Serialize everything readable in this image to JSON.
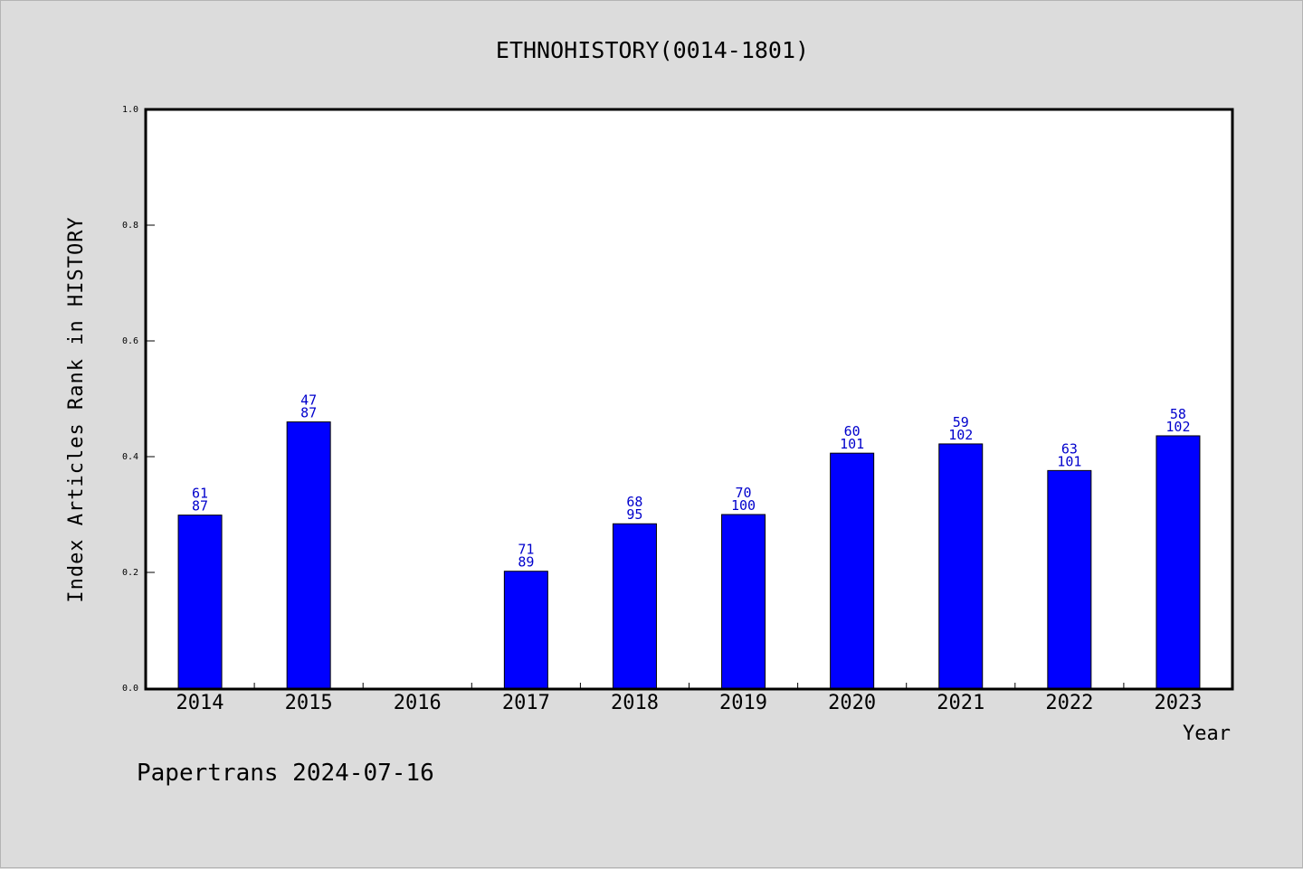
{
  "chart_data": {
    "type": "bar",
    "title": "ETHNOHISTORY(0014-1801)",
    "xlabel": "Year",
    "ylabel": "Index Articles Rank in HISTORY",
    "ylim": [
      0,
      1.0
    ],
    "yticks": [
      "0.0",
      "0.2",
      "0.4",
      "0.6",
      "0.8",
      "1.0"
    ],
    "categories": [
      "2014",
      "2015",
      "2016",
      "2017",
      "2018",
      "2019",
      "2020",
      "2021",
      "2022",
      "2023"
    ],
    "values": [
      0.299,
      0.46,
      null,
      0.202,
      0.284,
      0.3,
      0.406,
      0.422,
      0.376,
      0.436
    ],
    "labels_top": [
      "61",
      "47",
      "",
      "71",
      "68",
      "70",
      "60",
      "59",
      "63",
      "58"
    ],
    "labels_bottom": [
      "87",
      "87",
      "",
      "89",
      "95",
      "100",
      "101",
      "102",
      "101",
      "102"
    ],
    "bar_color": "#0000ff",
    "label_color": "#0000cc",
    "grid": false,
    "legend": "none"
  },
  "footer": "Papertrans 2024-07-16"
}
